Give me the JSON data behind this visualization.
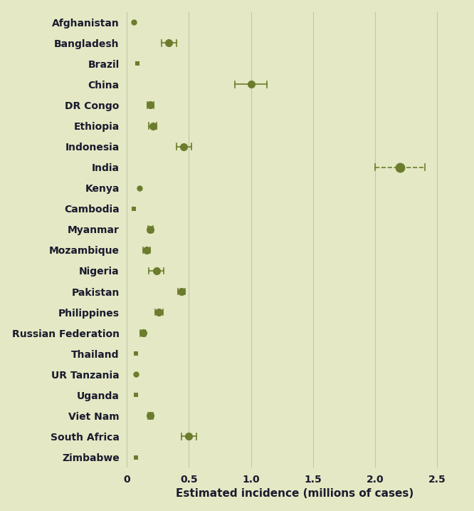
{
  "countries": [
    "Afghanistan",
    "Bangladesh",
    "Brazil",
    "China",
    "DR Congo",
    "Ethiopia",
    "Indonesia",
    "India",
    "Kenya",
    "Cambodia",
    "Myanmar",
    "Mozambique",
    "Nigeria",
    "Pakistan",
    "Philippines",
    "Russian Federation",
    "Thailand",
    "UR Tanzania",
    "Uganda",
    "Viet Nam",
    "South Africa",
    "Zimbabwe"
  ],
  "values": [
    0.055,
    0.34,
    0.085,
    1.0,
    0.19,
    0.21,
    0.46,
    2.2,
    0.1,
    0.055,
    0.19,
    0.16,
    0.24,
    0.44,
    0.26,
    0.13,
    0.075,
    0.075,
    0.075,
    0.19,
    0.5,
    0.075
  ],
  "xerr_low": [
    0.0,
    0.06,
    0.01,
    0.13,
    0.025,
    0.03,
    0.06,
    0.2,
    0.0,
    0.0,
    0.02,
    0.03,
    0.06,
    0.03,
    0.03,
    0.02,
    0.01,
    0.0,
    0.01,
    0.02,
    0.06,
    0.01
  ],
  "xerr_high": [
    0.0,
    0.06,
    0.01,
    0.13,
    0.025,
    0.03,
    0.06,
    0.2,
    0.0,
    0.0,
    0.02,
    0.03,
    0.06,
    0.03,
    0.03,
    0.02,
    0.01,
    0.0,
    0.01,
    0.02,
    0.06,
    0.01
  ],
  "has_errbar": [
    false,
    true,
    true,
    true,
    true,
    true,
    true,
    true,
    false,
    false,
    true,
    true,
    true,
    true,
    true,
    true,
    true,
    false,
    true,
    true,
    true,
    true
  ],
  "is_square": [
    false,
    false,
    true,
    false,
    false,
    false,
    false,
    false,
    false,
    true,
    false,
    false,
    false,
    false,
    false,
    false,
    true,
    false,
    true,
    false,
    false,
    true
  ],
  "dashed": [
    false,
    false,
    false,
    false,
    false,
    false,
    false,
    true,
    false,
    false,
    false,
    false,
    false,
    false,
    false,
    false,
    false,
    false,
    false,
    false,
    false,
    false
  ],
  "marker_color": "#6b7c2d",
  "bg_color": "#e4e8c4",
  "grid_color": "#c0c8a8",
  "text_color": "#1a1a2e",
  "xlabel": "Estimated incidence (millions of cases)",
  "xlim": [
    0,
    2.7
  ],
  "xticks": [
    0,
    0.5,
    1.0,
    1.5,
    2.0,
    2.5
  ],
  "xtick_labels": [
    "0",
    "0.5",
    "1.0",
    "1.5",
    "2.0",
    "2.5"
  ]
}
